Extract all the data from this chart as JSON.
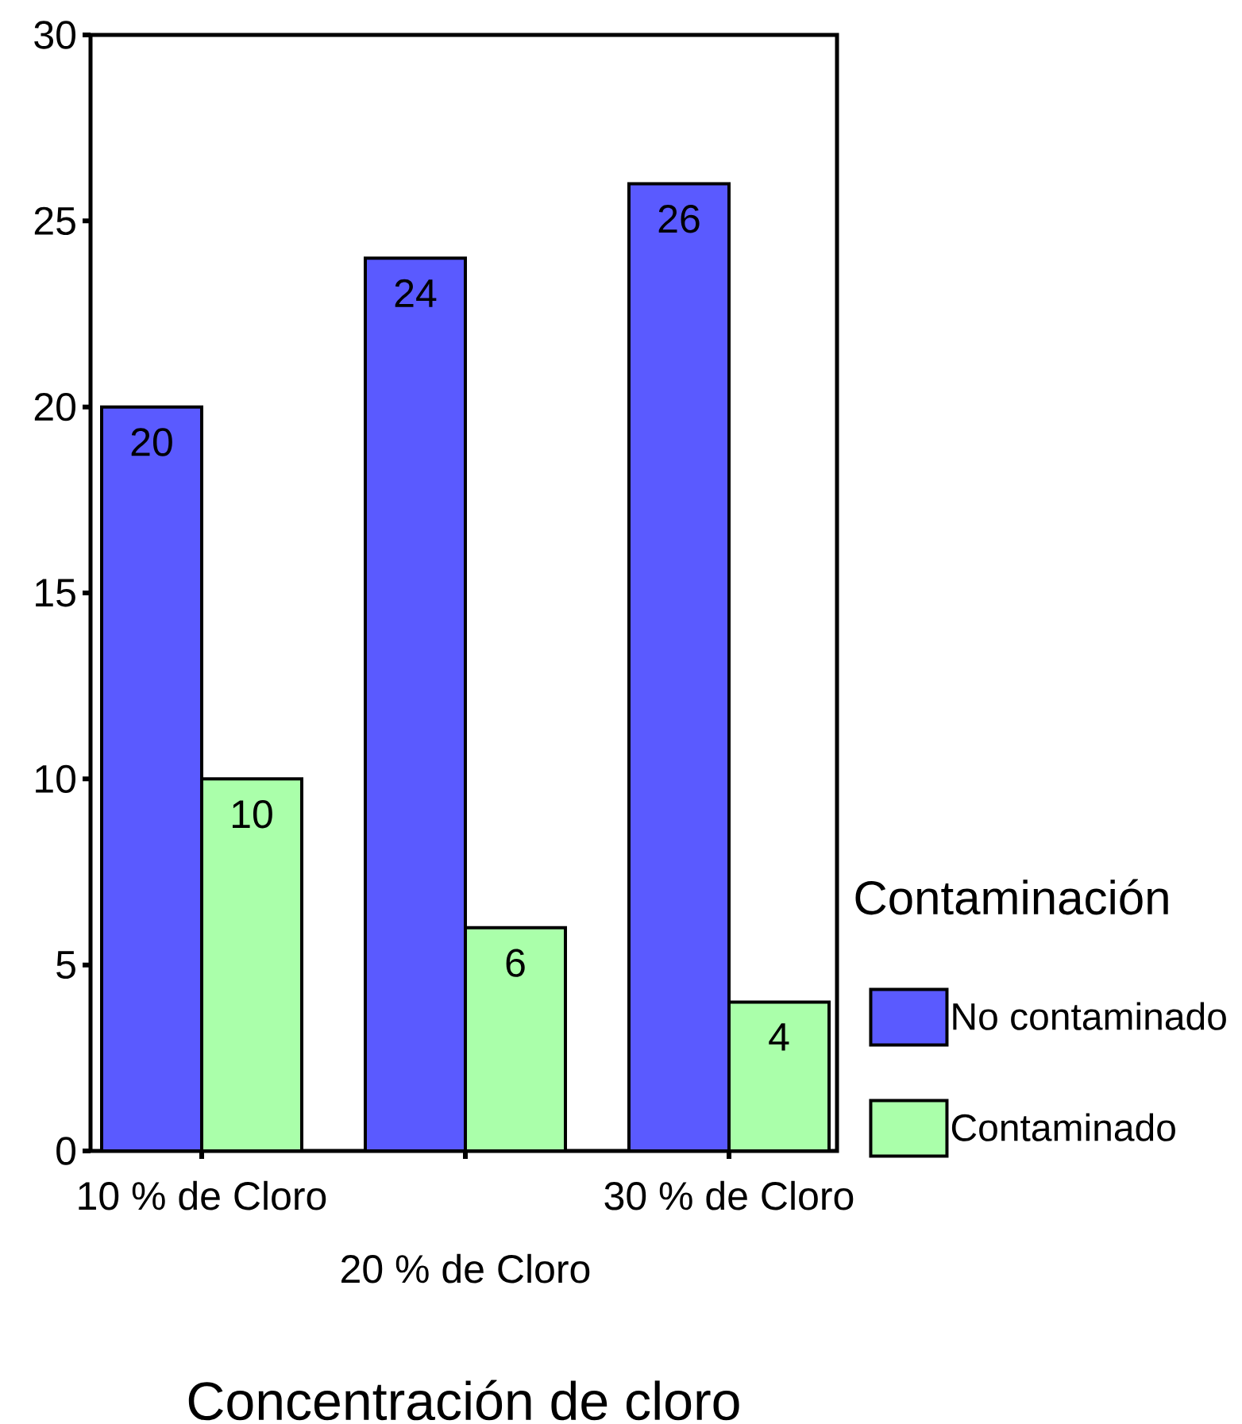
{
  "chart_data": {
    "type": "bar",
    "xlabel": "Concentración de cloro",
    "legend_title": "Contaminación",
    "categories": [
      "10 % de Cloro",
      "20 % de Cloro",
      "30 % de Cloro"
    ],
    "series": [
      {
        "name": "No contaminado",
        "color": "#5a5aff",
        "values": [
          20,
          24,
          26
        ]
      },
      {
        "name": "Contaminado",
        "color": "#aaffaa",
        "values": [
          10,
          6,
          4
        ]
      }
    ],
    "ylim": [
      0,
      30
    ],
    "yticks": [
      0,
      5,
      10,
      15,
      20,
      25,
      30
    ],
    "data_labels": true,
    "legend": "right"
  }
}
